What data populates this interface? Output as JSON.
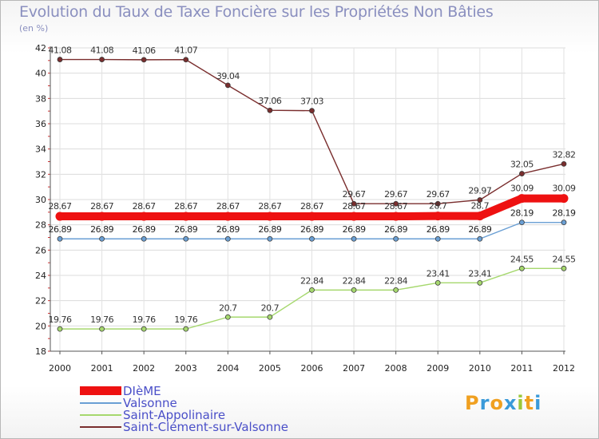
{
  "title": "Evolution du Taux de Taxe Foncière sur les Propriétés Non Bâties",
  "subtitle": "(en %)",
  "chart_data": {
    "type": "line",
    "title": "Evolution du Taux de Taxe Foncière sur les Propriétés Non Bâties",
    "ylabel": "(en %)",
    "ylim": [
      18,
      42
    ],
    "yticks": [
      "18",
      "20",
      "22",
      "24",
      "26",
      "28",
      "30",
      "32",
      "34",
      "36",
      "38",
      "40",
      "42"
    ],
    "categories": [
      "2000",
      "2001",
      "2002",
      "2003",
      "2004",
      "2005",
      "2006",
      "2007",
      "2008",
      "2009",
      "2010",
      "2011",
      "2012"
    ],
    "series": [
      {
        "name": "Saint-Clément-sur-Valsonne",
        "color": "#7a2e2e",
        "values": [
          41.08,
          41.08,
          41.06,
          41.07,
          39.04,
          37.06,
          37.03,
          29.67,
          29.67,
          29.67,
          29.97,
          32.05,
          32.82
        ],
        "labels": [
          "41.08",
          "41.08",
          "41.06",
          "41.07",
          "39.04",
          "37.06",
          "37.03",
          "29.67",
          "29.67",
          "29.67",
          "29.97",
          "32.05",
          "32.82"
        ]
      },
      {
        "name": "DIèME",
        "color": "#ee1111",
        "values": [
          28.67,
          28.67,
          28.67,
          28.67,
          28.67,
          28.67,
          28.67,
          28.67,
          28.67,
          28.7,
          28.7,
          30.09,
          30.09
        ],
        "labels": [
          "28.67",
          "28.67",
          "28.67",
          "28.67",
          "28.67",
          "28.67",
          "28.67",
          "28.67",
          "28.67",
          "28.7",
          "28.7",
          "30.09",
          "30.09"
        ]
      },
      {
        "name": "Valsonne",
        "color": "#6a9fd4",
        "values": [
          26.89,
          26.89,
          26.89,
          26.89,
          26.89,
          26.89,
          26.89,
          26.89,
          26.89,
          26.89,
          26.89,
          28.19,
          28.19
        ],
        "labels": [
          "26.89",
          "26.89",
          "26.89",
          "26.89",
          "26.89",
          "26.89",
          "26.89",
          "26.89",
          "26.89",
          "26.89",
          "26.89",
          "28.19",
          "28.19"
        ]
      },
      {
        "name": "Saint-Appolinaire",
        "color": "#a6d86e",
        "values": [
          19.76,
          19.76,
          19.76,
          19.76,
          20.7,
          20.7,
          22.84,
          22.84,
          22.84,
          23.41,
          23.41,
          24.55,
          24.55
        ],
        "labels": [
          "19.76",
          "19.76",
          "19.76",
          "19.76",
          "20.7",
          "20.7",
          "22.84",
          "22.84",
          "22.84",
          "23.41",
          "23.41",
          "24.55",
          "24.55"
        ]
      }
    ],
    "legend": [
      {
        "name": "DIèME",
        "color": "#ee1111"
      },
      {
        "name": "Valsonne",
        "color": "#6a9fd4"
      },
      {
        "name": "Saint-Appolinaire",
        "color": "#a6d86e"
      },
      {
        "name": "Saint-Clément-sur-Valsonne",
        "color": "#7a2e2e"
      }
    ]
  },
  "logo": {
    "letters": [
      "P",
      "r",
      "o",
      "x",
      "i",
      "t",
      "i"
    ],
    "colors": [
      "#f0a020",
      "#3a9ad9",
      "#f0a020",
      "#3a9ad9",
      "#9bc83a",
      "#f0a020",
      "#3a9ad9"
    ]
  }
}
